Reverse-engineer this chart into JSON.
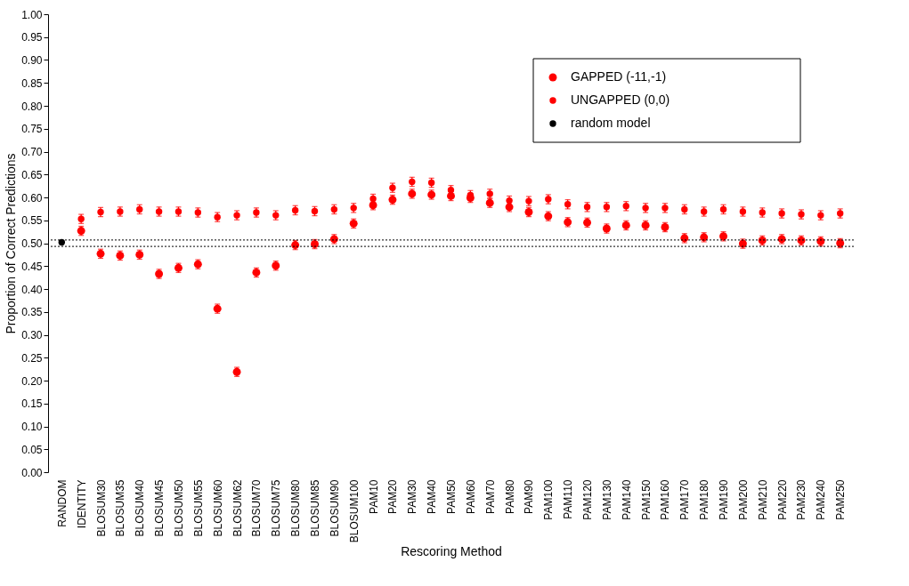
{
  "chart_data": {
    "type": "scatter",
    "xlabel": "Rescoring Method",
    "ylabel": "Proportion of Correct Predictions",
    "categories": [
      "RANDOM",
      "IDENTITY",
      "BLOSUM30",
      "BLOSUM35",
      "BLOSUM40",
      "BLOSUM45",
      "BLOSUM50",
      "BLOSUM55",
      "BLOSUM60",
      "BLOSUM62",
      "BLOSUM70",
      "BLOSUM75",
      "BLOSUM80",
      "BLOSUM85",
      "BLOSUM90",
      "BLOSUM100",
      "PAM10",
      "PAM20",
      "PAM30",
      "PAM40",
      "PAM50",
      "PAM60",
      "PAM70",
      "PAM80",
      "PAM90",
      "PAM100",
      "PAM110",
      "PAM120",
      "PAM130",
      "PAM140",
      "PAM150",
      "PAM160",
      "PAM170",
      "PAM180",
      "PAM190",
      "PAM200",
      "PAM210",
      "PAM220",
      "PAM230",
      "PAM240",
      "PAM250"
    ],
    "series": [
      {
        "name": "GAPPED (-11,-1)",
        "color": "#ff0000",
        "values": [
          null,
          0.527,
          0.477,
          0.473,
          0.475,
          0.433,
          0.446,
          0.454,
          0.357,
          0.219,
          0.436,
          0.451,
          0.496,
          0.498,
          0.509,
          0.543,
          0.583,
          0.595,
          0.608,
          0.606,
          0.603,
          0.599,
          0.588,
          0.579,
          0.568,
          0.559,
          0.546,
          0.545,
          0.532,
          0.539,
          0.539,
          0.535,
          0.511,
          0.513,
          0.515,
          0.499,
          0.506,
          0.509,
          0.506,
          0.504,
          0.5
        ],
        "errors": [
          null,
          0.01,
          0.01,
          0.01,
          0.01,
          0.01,
          0.01,
          0.01,
          0.01,
          0.01,
          0.01,
          0.01,
          0.01,
          0.01,
          0.01,
          0.01,
          0.01,
          0.01,
          0.01,
          0.01,
          0.01,
          0.01,
          0.01,
          0.01,
          0.01,
          0.01,
          0.01,
          0.01,
          0.01,
          0.01,
          0.01,
          0.01,
          0.01,
          0.01,
          0.01,
          0.01,
          0.01,
          0.01,
          0.01,
          0.01,
          0.01
        ]
      },
      {
        "name": "UNGAPPED (0,0)",
        "color": "#ff0000",
        "values": [
          null,
          0.553,
          0.568,
          0.569,
          0.574,
          0.569,
          0.569,
          0.567,
          0.557,
          0.561,
          0.567,
          0.561,
          0.572,
          0.57,
          0.574,
          0.577,
          0.597,
          0.621,
          0.634,
          0.632,
          0.616,
          0.605,
          0.608,
          0.593,
          0.592,
          0.596,
          0.585,
          0.579,
          0.579,
          0.581,
          0.577,
          0.577,
          0.574,
          0.569,
          0.574,
          0.569,
          0.567,
          0.565,
          0.563,
          0.561,
          0.565
        ],
        "errors": [
          null,
          0.01,
          0.01,
          0.01,
          0.01,
          0.01,
          0.01,
          0.01,
          0.01,
          0.01,
          0.01,
          0.01,
          0.01,
          0.01,
          0.01,
          0.01,
          0.01,
          0.01,
          0.01,
          0.01,
          0.01,
          0.01,
          0.01,
          0.01,
          0.01,
          0.01,
          0.01,
          0.01,
          0.01,
          0.01,
          0.01,
          0.01,
          0.01,
          0.01,
          0.01,
          0.01,
          0.01,
          0.01,
          0.01,
          0.01,
          0.01
        ]
      },
      {
        "name": "random model",
        "color": "#000000",
        "values": [
          0.502,
          null,
          null,
          null,
          null,
          null,
          null,
          null,
          null,
          null,
          null,
          null,
          null,
          null,
          null,
          null,
          null,
          null,
          null,
          null,
          null,
          null,
          null,
          null,
          null,
          null,
          null,
          null,
          null,
          null,
          null,
          null,
          null,
          null,
          null,
          null,
          null,
          null,
          null,
          null,
          null
        ]
      }
    ],
    "ylim": [
      0,
      1
    ],
    "yticks": [
      {
        "value": 0,
        "label": "0.00"
      },
      {
        "value": 0.05,
        "label": "0.05"
      },
      {
        "value": 0.1,
        "label": "0.10"
      },
      {
        "value": 0.15,
        "label": "0.15"
      },
      {
        "value": 0.2,
        "label": "0.20"
      },
      {
        "value": 0.25,
        "label": "0.25"
      },
      {
        "value": 0.3,
        "label": "0.30"
      },
      {
        "value": 0.35,
        "label": "0.35"
      },
      {
        "value": 0.4,
        "label": "0.40"
      },
      {
        "value": 0.45,
        "label": "0.45"
      },
      {
        "value": 0.5,
        "label": "0.50"
      },
      {
        "value": 0.55,
        "label": "0.55"
      },
      {
        "value": 0.6,
        "label": "0.60"
      },
      {
        "value": 0.65,
        "label": "0.65"
      },
      {
        "value": 0.7,
        "label": "0.70"
      },
      {
        "value": 0.75,
        "label": "0.75"
      },
      {
        "value": 0.8,
        "label": "0.80"
      },
      {
        "value": 0.85,
        "label": "0.85"
      },
      {
        "value": 0.9,
        "label": "0.90"
      },
      {
        "value": 0.95,
        "label": "0.95"
      },
      {
        "value": 1,
        "label": "1.00"
      }
    ],
    "ref_lines": [
      {
        "axis": "y",
        "value": 0.507,
        "color": "#000000",
        "line_style": "dotted"
      },
      {
        "axis": "y",
        "value": 0.493,
        "color": "#000000",
        "line_style": "dotted"
      }
    ],
    "grid": false,
    "legend": "top right",
    "marker": "circle"
  }
}
